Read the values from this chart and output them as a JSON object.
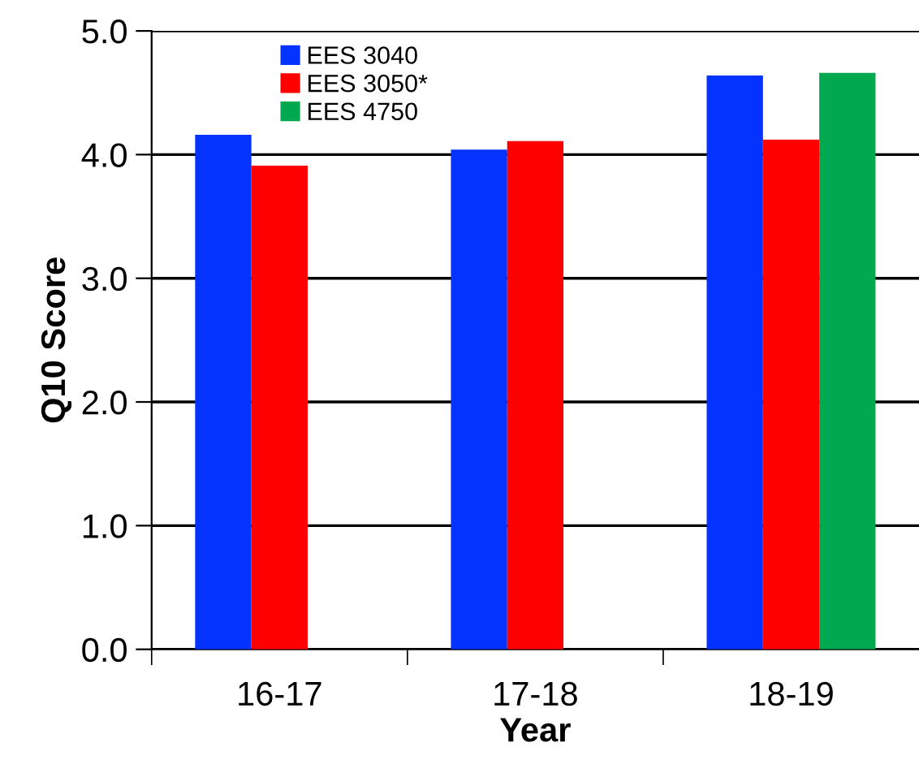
{
  "chart_data": {
    "type": "bar",
    "xlabel": "Year",
    "ylabel": "Q10 Score",
    "categories": [
      "16-17",
      "17-18",
      "18-19"
    ],
    "series": [
      {
        "name": "EES 3040",
        "color": "#0433ff",
        "values": [
          4.16,
          4.04,
          4.64
        ]
      },
      {
        "name": "EES 3050*",
        "color": "#ff0000",
        "values": [
          3.91,
          4.11,
          4.12
        ]
      },
      {
        "name": "EES 4750",
        "color": "#00a94f",
        "values": [
          null,
          null,
          4.66
        ]
      }
    ],
    "ylim": [
      0,
      5
    ],
    "yticks": [
      {
        "value": 0,
        "label": "0.0"
      },
      {
        "value": 1,
        "label": "1.0"
      },
      {
        "value": 2,
        "label": "2.0"
      },
      {
        "value": 3,
        "label": "3.0"
      },
      {
        "value": 4,
        "label": "4.0"
      },
      {
        "value": 5,
        "label": "5.0"
      }
    ],
    "grid": "y",
    "legend": "top left"
  }
}
